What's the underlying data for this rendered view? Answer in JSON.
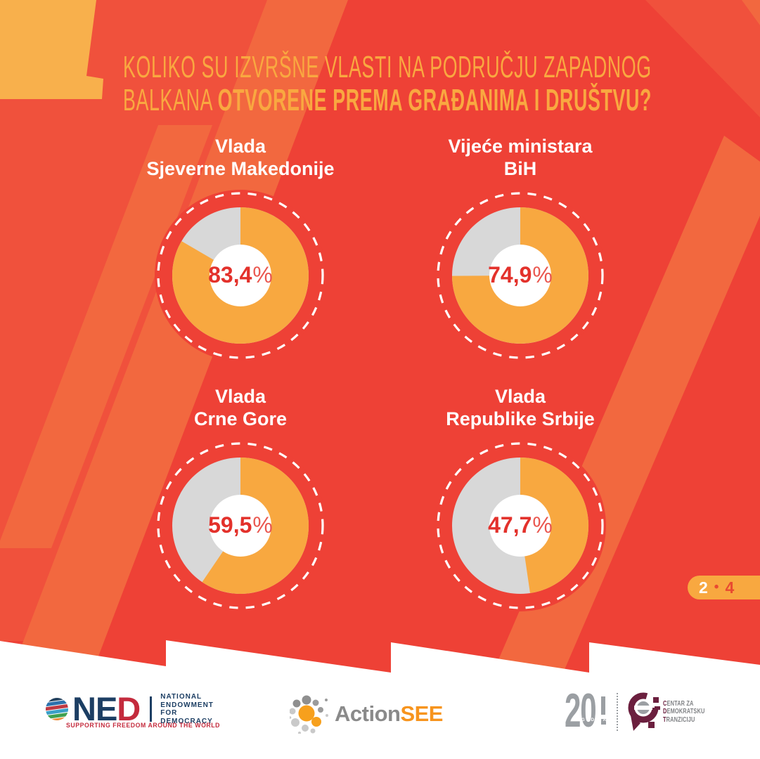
{
  "title": {
    "line1": "KOLIKO SU IZVRŠNE VLASTI NA PODRUČJU ZAPADNOG",
    "line2_regular": "BALKANA ",
    "line2_bold": "OTVORENE PREMA GRAĐANIMA I DRUŠTVU?"
  },
  "page_indicator": {
    "current": "2",
    "separator": "•",
    "total": "4"
  },
  "chart_data": {
    "type": "pie",
    "unit": "%",
    "title": "KOLIKO SU IZVRŠNE VLASTI NA PODRUČJU ZAPADNOG BALKANA OTVORENE PREMA GRAĐANIMA I DRUŠTVU?",
    "legend_position": "none",
    "series": [
      {
        "label": "Vlada Sjeverne Makedonije",
        "label_line1": "Vlada",
        "label_line2": "Sjeverne Makedonije",
        "value": 83.4,
        "value_display": "83,4"
      },
      {
        "label": "Vijeće ministara BiH",
        "label_line1": "Vijeće ministara",
        "label_line2": "BiH",
        "value": 74.9,
        "value_display": "74,9"
      },
      {
        "label": "Vlada Crne Gore",
        "label_line1": "Vlada",
        "label_line2": "Crne Gore",
        "value": 59.5,
        "value_display": "59,5"
      },
      {
        "label": "Vlada Republike Srbije",
        "label_line1": "Vlada",
        "label_line2": "Republike Srbije",
        "value": 47.7,
        "value_display": "47,7"
      }
    ],
    "colors": {
      "value": "#F8A840",
      "remainder": "#D8D8D8",
      "backing": "#EE4136",
      "ring": "#FFFFFF",
      "hole": "#FFFFFF"
    }
  },
  "background_colors": {
    "base_red": "#EE4136",
    "subtle_red": "#F0513C",
    "stripe_orange": "#F2683F",
    "corner_yellow": "#F8B04C",
    "footer_white": "#FFFFFF"
  },
  "footer": {
    "ned": {
      "acronym_part1": "NE",
      "acronym_part2": "D",
      "lines": [
        "NATIONAL",
        "ENDOWMENT",
        "FOR",
        "DEMOCRACY"
      ],
      "tagline": "SUPPORTING FREEDOM AROUND THE WORLD"
    },
    "actionsee": {
      "part1": "Action",
      "part2": "SEE"
    },
    "cdt": {
      "years": "20",
      "years_label": "GODINA",
      "lines": [
        {
          "initial": "C",
          "rest": "ENTAR ZA"
        },
        {
          "initial": "D",
          "rest": "EMOKRATSKU"
        },
        {
          "initial": "T",
          "rest": "RANZICIJU"
        }
      ]
    }
  }
}
